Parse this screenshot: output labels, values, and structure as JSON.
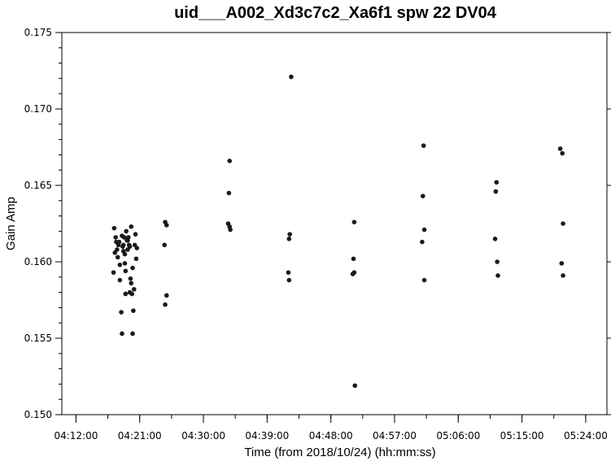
{
  "chart_data": {
    "type": "scatter",
    "title": "uid___A002_Xd3c7c2_Xa6f1 spw 22 DV04",
    "xlabel": "Time (from 2018/10/24) (hh:mm:ss)",
    "ylabel": "Gain Amp",
    "x_ticks": [
      "04:12:00",
      "04:21:00",
      "04:30:00",
      "04:39:00",
      "04:48:00",
      "04:57:00",
      "05:06:00",
      "05:15:00",
      "05:24:00"
    ],
    "y_ticks": [
      "0.150",
      "0.155",
      "0.160",
      "0.165",
      "0.170",
      "0.175"
    ],
    "xlim": [
      "04:10:00",
      "05:27:00"
    ],
    "ylim": [
      0.15,
      0.175
    ],
    "grid": false,
    "point_color": "#1a1a1a",
    "x_units": "minutes after 04:00:00",
    "points": [
      [
        17.4,
        0.1622
      ],
      [
        17.6,
        0.1616
      ],
      [
        17.7,
        0.1613
      ],
      [
        17.8,
        0.1608
      ],
      [
        17.9,
        0.1603
      ],
      [
        18.0,
        0.1611
      ],
      [
        18.1,
        0.1613
      ],
      [
        18.2,
        0.1598
      ],
      [
        17.3,
        0.1593
      ],
      [
        17.5,
        0.1606
      ],
      [
        18.2,
        0.1588
      ],
      [
        18.4,
        0.1567
      ],
      [
        18.5,
        0.1553
      ],
      [
        18.5,
        0.1617
      ],
      [
        18.6,
        0.161
      ],
      [
        18.7,
        0.1607
      ],
      [
        18.8,
        0.1616
      ],
      [
        18.9,
        0.1599
      ],
      [
        19.0,
        0.1594
      ],
      [
        19.0,
        0.1579
      ],
      [
        19.1,
        0.162
      ],
      [
        19.2,
        0.1614
      ],
      [
        19.3,
        0.1608
      ],
      [
        19.4,
        0.1616
      ],
      [
        19.5,
        0.1611
      ],
      [
        19.6,
        0.161
      ],
      [
        19.7,
        0.1589
      ],
      [
        19.8,
        0.1623
      ],
      [
        19.8,
        0.1586
      ],
      [
        19.9,
        0.1579
      ],
      [
        20.1,
        0.1568
      ],
      [
        20.0,
        0.1553
      ],
      [
        20.2,
        0.1582
      ],
      [
        20.3,
        0.1611
      ],
      [
        20.4,
        0.1618
      ],
      [
        20.5,
        0.1602
      ],
      [
        20.6,
        0.1609
      ],
      [
        18.9,
        0.1605
      ],
      [
        19.3,
        0.1614
      ],
      [
        19.6,
        0.158
      ],
      [
        20.0,
        0.1596
      ],
      [
        18.7,
        0.1611
      ],
      [
        24.6,
        0.1626
      ],
      [
        24.8,
        0.1624
      ],
      [
        24.5,
        0.1611
      ],
      [
        24.8,
        0.1578
      ],
      [
        24.6,
        0.1572
      ],
      [
        33.7,
        0.1666
      ],
      [
        33.6,
        0.1645
      ],
      [
        33.5,
        0.1625
      ],
      [
        33.7,
        0.1623
      ],
      [
        33.8,
        0.1621
      ],
      [
        42.4,
        0.1721
      ],
      [
        42.2,
        0.1618
      ],
      [
        42.1,
        0.1615
      ],
      [
        42.0,
        0.1593
      ],
      [
        42.1,
        0.1588
      ],
      [
        51.3,
        0.1626
      ],
      [
        51.2,
        0.1602
      ],
      [
        51.1,
        0.1592
      ],
      [
        51.3,
        0.1593
      ],
      [
        51.4,
        0.1519
      ],
      [
        61.1,
        0.1676
      ],
      [
        61.0,
        0.1643
      ],
      [
        61.2,
        0.1621
      ],
      [
        60.9,
        0.1613
      ],
      [
        61.2,
        0.1588
      ],
      [
        71.4,
        0.1652
      ],
      [
        71.3,
        0.1646
      ],
      [
        71.2,
        0.1615
      ],
      [
        71.5,
        0.16
      ],
      [
        71.6,
        0.1591
      ],
      [
        80.4,
        0.1674
      ],
      [
        80.7,
        0.1671
      ],
      [
        80.8,
        0.1625
      ],
      [
        80.6,
        0.1599
      ],
      [
        80.8,
        0.1591
      ]
    ]
  }
}
